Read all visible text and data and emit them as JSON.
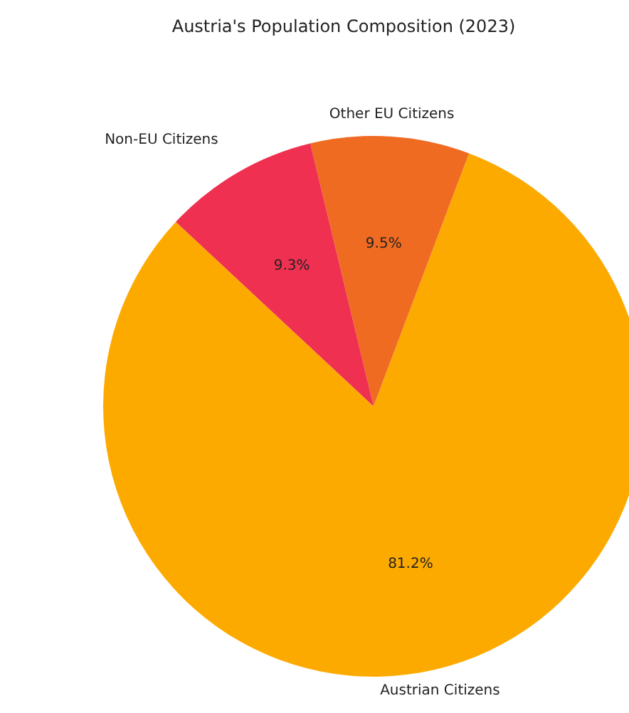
{
  "chart_data": {
    "type": "pie",
    "title": "Austria's Population Composition (2023)",
    "categories": [
      "Austrian Citizens",
      "Other EU Citizens",
      "Non-EU Citizens"
    ],
    "values": [
      81.2,
      9.5,
      9.3
    ],
    "colors": [
      "#fdaa00",
      "#f06b22",
      "#ef3050"
    ],
    "value_labels": [
      "81.2%",
      "9.5%",
      "9.3%"
    ]
  }
}
